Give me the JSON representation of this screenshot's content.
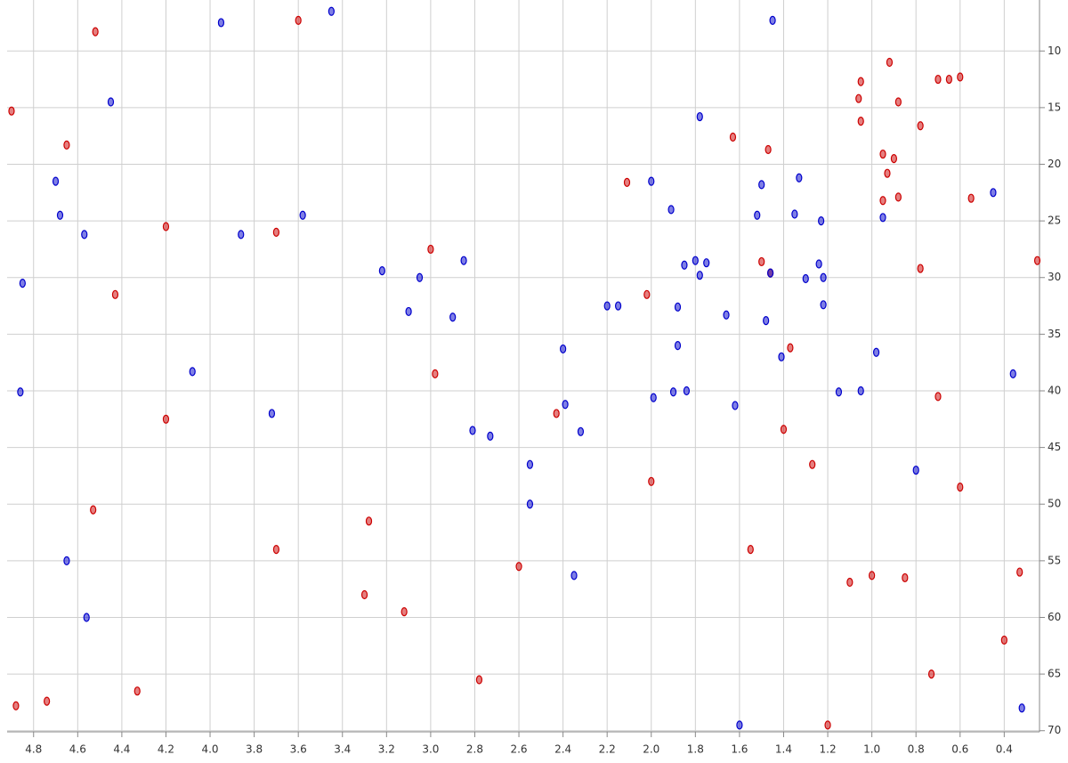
{
  "chart_data": {
    "type": "scatter",
    "xlim": [
      4.92,
      0.24
    ],
    "ylim": [
      5.5,
      70.1
    ],
    "grid": true,
    "y_axis_side": "right",
    "y_inverted": true,
    "xticks": [
      4.8,
      4.6,
      4.4,
      4.2,
      {
        "value": 4,
        "label": "4.0"
      },
      3.8,
      3.6,
      3.4,
      3.2,
      {
        "value": 3,
        "label": "3.0"
      },
      2.8,
      2.6,
      2.4,
      2.2,
      {
        "value": 2,
        "label": "2.0"
      },
      1.8,
      1.6,
      1.4,
      1.2,
      {
        "value": 1,
        "label": "1.0"
      },
      0.8,
      0.6,
      0.4
    ],
    "yticks": [
      10,
      15,
      20,
      25,
      30,
      35,
      40,
      45,
      50,
      55,
      60,
      65,
      70
    ],
    "series": [
      {
        "color": "#cc0000",
        "x": [
          0.6,
          0.7,
          0.65,
          0.92,
          1.05,
          1.05,
          0.88,
          0.78,
          1.47,
          1.63,
          0.95,
          0.9,
          0.93,
          0.88,
          0.95,
          1.06,
          2.11,
          1.5,
          1.46,
          1.37,
          1.1,
          1.0,
          4.33,
          4.74,
          3.12,
          3.0,
          1.4,
          2.43,
          4.9,
          4.88,
          4.65,
          4.52,
          4.53,
          4.2,
          3.7,
          3.6,
          3.3,
          3.28,
          2.98,
          2.6,
          2.02,
          2.0,
          1.2,
          0.73,
          0.7,
          0.6,
          0.4,
          0.25,
          0.33,
          1.27,
          0.85,
          2.78,
          3.7,
          4.43,
          4.2,
          1.55,
          0.78,
          0.55
        ],
        "y": [
          12.3,
          12.5,
          12.5,
          11.0,
          12.7,
          16.2,
          14.5,
          16.6,
          18.7,
          17.6,
          19.1,
          19.5,
          20.8,
          22.9,
          23.2,
          14.2,
          21.6,
          28.6,
          29.6,
          36.2,
          56.9,
          56.3,
          66.5,
          67.4,
          59.5,
          27.5,
          43.4,
          42.0,
          15.3,
          67.8,
          18.3,
          8.3,
          50.5,
          25.5,
          26.0,
          7.3,
          58.0,
          51.5,
          38.5,
          55.5,
          31.5,
          48.0,
          69.5,
          65.0,
          40.5,
          48.5,
          62.0,
          28.5,
          56.0,
          46.5,
          56.5,
          65.5,
          54.0,
          31.5,
          42.5,
          54.0,
          29.2,
          23.0
        ]
      },
      {
        "color": "#0000cc",
        "x": [
          1.3,
          1.22,
          1.24,
          1.33,
          1.5,
          1.52,
          1.35,
          1.23,
          0.95,
          1.8,
          1.78,
          1.75,
          1.85,
          1.46,
          2.2,
          2.15,
          1.88,
          1.66,
          1.48,
          2.4,
          1.88,
          2.39,
          1.62,
          1.9,
          1.84,
          1.15,
          1.05,
          2.32,
          0.98,
          1.99,
          1.22,
          2.81,
          1.41,
          4.85,
          4.7,
          4.68,
          4.57,
          4.45,
          4.08,
          3.86,
          3.72,
          3.58,
          3.22,
          3.1,
          3.05,
          2.85,
          2.55,
          2.55,
          2.35,
          2.0,
          1.91,
          1.78,
          1.45,
          1.6,
          0.45,
          0.36,
          0.32,
          4.86,
          3.45,
          2.9,
          4.65,
          4.56,
          3.95,
          2.73,
          0.8
        ],
        "y": [
          30.1,
          30.0,
          28.8,
          21.2,
          21.8,
          24.5,
          24.4,
          25.0,
          24.7,
          28.5,
          29.8,
          28.7,
          28.9,
          29.6,
          32.5,
          32.5,
          32.6,
          33.3,
          33.8,
          36.3,
          36.0,
          41.2,
          41.3,
          40.1,
          40.0,
          40.1,
          40.0,
          43.6,
          36.6,
          40.6,
          32.4,
          43.5,
          37.0,
          30.5,
          21.5,
          24.5,
          26.2,
          14.5,
          38.3,
          26.2,
          42.0,
          24.5,
          29.4,
          33.0,
          30.0,
          28.5,
          50.0,
          46.5,
          56.3,
          21.5,
          24.0,
          15.8,
          7.3,
          69.5,
          22.5,
          38.5,
          68.0,
          40.1,
          6.5,
          33.5,
          55.0,
          60.0,
          7.5,
          44.0,
          47.0
        ]
      }
    ]
  }
}
